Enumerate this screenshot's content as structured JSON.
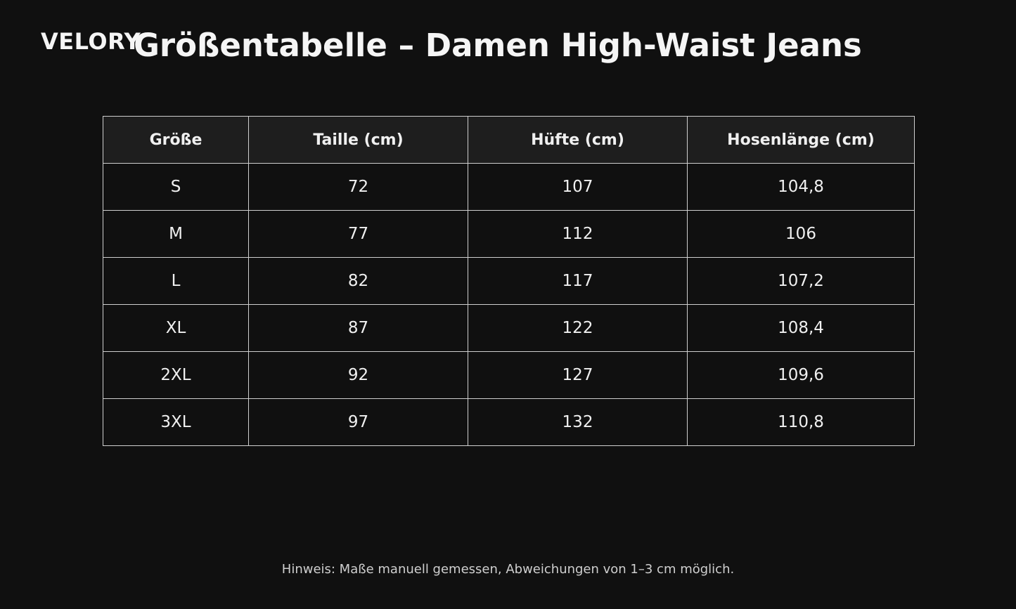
{
  "logo": "VELORY",
  "title": "Größentabelle – Damen High-Waist Jeans",
  "table": {
    "headers": [
      "Größe",
      "Taille (cm)",
      "Hüfte (cm)",
      "Hosenlänge (cm)"
    ],
    "rows": [
      [
        "S",
        "72",
        "107",
        "104,8"
      ],
      [
        "M",
        "77",
        "112",
        "106"
      ],
      [
        "L",
        "82",
        "117",
        "107,2"
      ],
      [
        "XL",
        "87",
        "122",
        "108,4"
      ],
      [
        "2XL",
        "92",
        "127",
        "109,6"
      ],
      [
        "3XL",
        "97",
        "132",
        "110,8"
      ]
    ]
  },
  "note": "Hinweis: Maße manuell gemessen, Abweichungen von 1–3 cm möglich."
}
